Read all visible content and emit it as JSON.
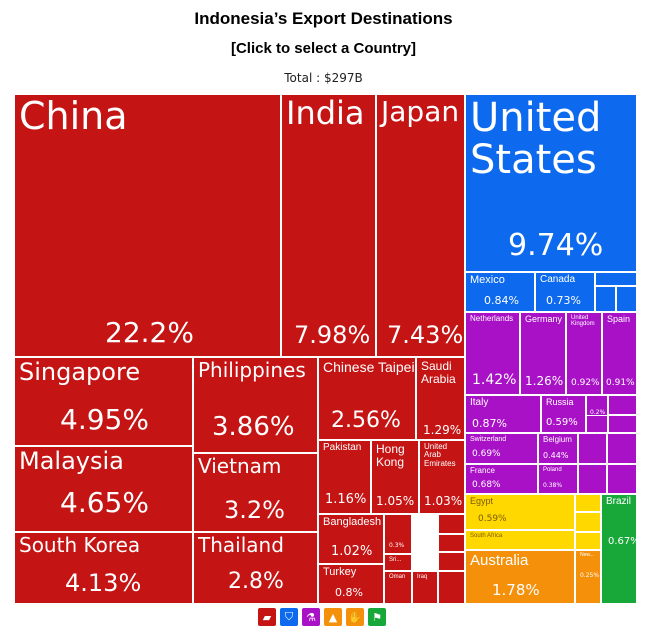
{
  "header": {
    "title": "Indonesia’s Export Destinations",
    "subtitle": "[Click to select a Country]",
    "total": "Total : $297B"
  },
  "colors": {
    "asia": "#c41414",
    "north_america": "#0d6aee",
    "europe": "#a911c7",
    "africa": "#ffd800",
    "oceania": "#f5900a",
    "south_america": "#18a839"
  },
  "chart_data": {
    "type": "treemap",
    "title": "Indonesia’s Export Destinations",
    "total": "$297B",
    "tiles": [
      {
        "name": "China",
        "value": 22.2,
        "label": "22.2%",
        "region": "asia"
      },
      {
        "name": "India",
        "value": 7.98,
        "label": "7.98%",
        "region": "asia"
      },
      {
        "name": "Japan",
        "value": 7.43,
        "label": "7.43%",
        "region": "asia"
      },
      {
        "name": "Singapore",
        "value": 4.95,
        "label": "4.95%",
        "region": "asia"
      },
      {
        "name": "Malaysia",
        "value": 4.65,
        "label": "4.65%",
        "region": "asia"
      },
      {
        "name": "South Korea",
        "value": 4.13,
        "label": "4.13%",
        "region": "asia"
      },
      {
        "name": "Philippines",
        "value": 3.86,
        "label": "3.86%",
        "region": "asia"
      },
      {
        "name": "Vietnam",
        "value": 3.2,
        "label": "3.2%",
        "region": "asia"
      },
      {
        "name": "Thailand",
        "value": 2.8,
        "label": "2.8%",
        "region": "asia"
      },
      {
        "name": "Chinese Taipei",
        "value": 2.56,
        "label": "2.56%",
        "region": "asia"
      },
      {
        "name": "Saudi Arabia",
        "value": 1.29,
        "label": "1.29%",
        "region": "asia"
      },
      {
        "name": "Pakistan",
        "value": 1.16,
        "label": "1.16%",
        "region": "asia"
      },
      {
        "name": "Hong Kong",
        "value": 1.05,
        "label": "1.05%",
        "region": "asia"
      },
      {
        "name": "United Arab Emirates",
        "value": 1.03,
        "label": "1.03%",
        "region": "asia"
      },
      {
        "name": "Bangladesh",
        "value": 1.02,
        "label": "1.02%",
        "region": "asia"
      },
      {
        "name": "Turkey",
        "value": 0.8,
        "label": "0.8%",
        "region": "asia"
      },
      {
        "name": "",
        "value": 0.3,
        "label": "0.3%",
        "region": "asia"
      },
      {
        "name": "Sri...",
        "value": null,
        "label": "",
        "region": "asia"
      },
      {
        "name": "Oman",
        "value": null,
        "label": "",
        "region": "asia"
      },
      {
        "name": "Iraq",
        "value": null,
        "label": "",
        "region": "asia"
      },
      {
        "name": "United States",
        "value": 9.74,
        "label": "9.74%",
        "region": "north_america"
      },
      {
        "name": "Mexico",
        "value": 0.84,
        "label": "0.84%",
        "region": "north_america"
      },
      {
        "name": "Canada",
        "value": 0.73,
        "label": "0.73%",
        "region": "north_america"
      },
      {
        "name": "Netherlands",
        "value": 1.42,
        "label": "1.42%",
        "region": "europe"
      },
      {
        "name": "Germany",
        "value": 1.26,
        "label": "1.26%",
        "region": "europe"
      },
      {
        "name": "United Kingdom",
        "value": 0.92,
        "label": "0.92%",
        "region": "europe"
      },
      {
        "name": "Spain",
        "value": 0.91,
        "label": "0.91%",
        "region": "europe"
      },
      {
        "name": "Italy",
        "value": 0.87,
        "label": "0.87%",
        "region": "europe"
      },
      {
        "name": "Russia",
        "value": 0.59,
        "label": "0.59%",
        "region": "europe"
      },
      {
        "name": "",
        "value": 0.2,
        "label": "0.2%",
        "region": "europe"
      },
      {
        "name": "Switzerland",
        "value": 0.69,
        "label": "0.69%",
        "region": "europe"
      },
      {
        "name": "Belgium",
        "value": 0.44,
        "label": "0.44%",
        "region": "europe"
      },
      {
        "name": "France",
        "value": 0.68,
        "label": "0.68%",
        "region": "europe"
      },
      {
        "name": "Poland",
        "value": 0.38,
        "label": "0.38%",
        "region": "europe"
      },
      {
        "name": "Egypt",
        "value": 0.59,
        "label": "0.59%",
        "region": "africa"
      },
      {
        "name": "South Africa",
        "value": null,
        "label": "",
        "region": "africa"
      },
      {
        "name": "Brazil",
        "value": 0.67,
        "label": "0.67%",
        "region": "south_america"
      },
      {
        "name": "Australia",
        "value": 1.78,
        "label": "1.78%",
        "region": "oceania"
      },
      {
        "name": "New...",
        "value": 0.25,
        "label": "0.25%",
        "region": "oceania"
      }
    ]
  },
  "legend_buttons": [
    {
      "icon": "pig-icon",
      "glyph": "▰"
    },
    {
      "icon": "shield-icon",
      "glyph": "⛉"
    },
    {
      "icon": "flask-icon",
      "glyph": "⚗"
    },
    {
      "icon": "africa-icon",
      "glyph": "▲"
    },
    {
      "icon": "hand-icon",
      "glyph": "✋"
    },
    {
      "icon": "flag-icon",
      "glyph": "⚑"
    }
  ]
}
